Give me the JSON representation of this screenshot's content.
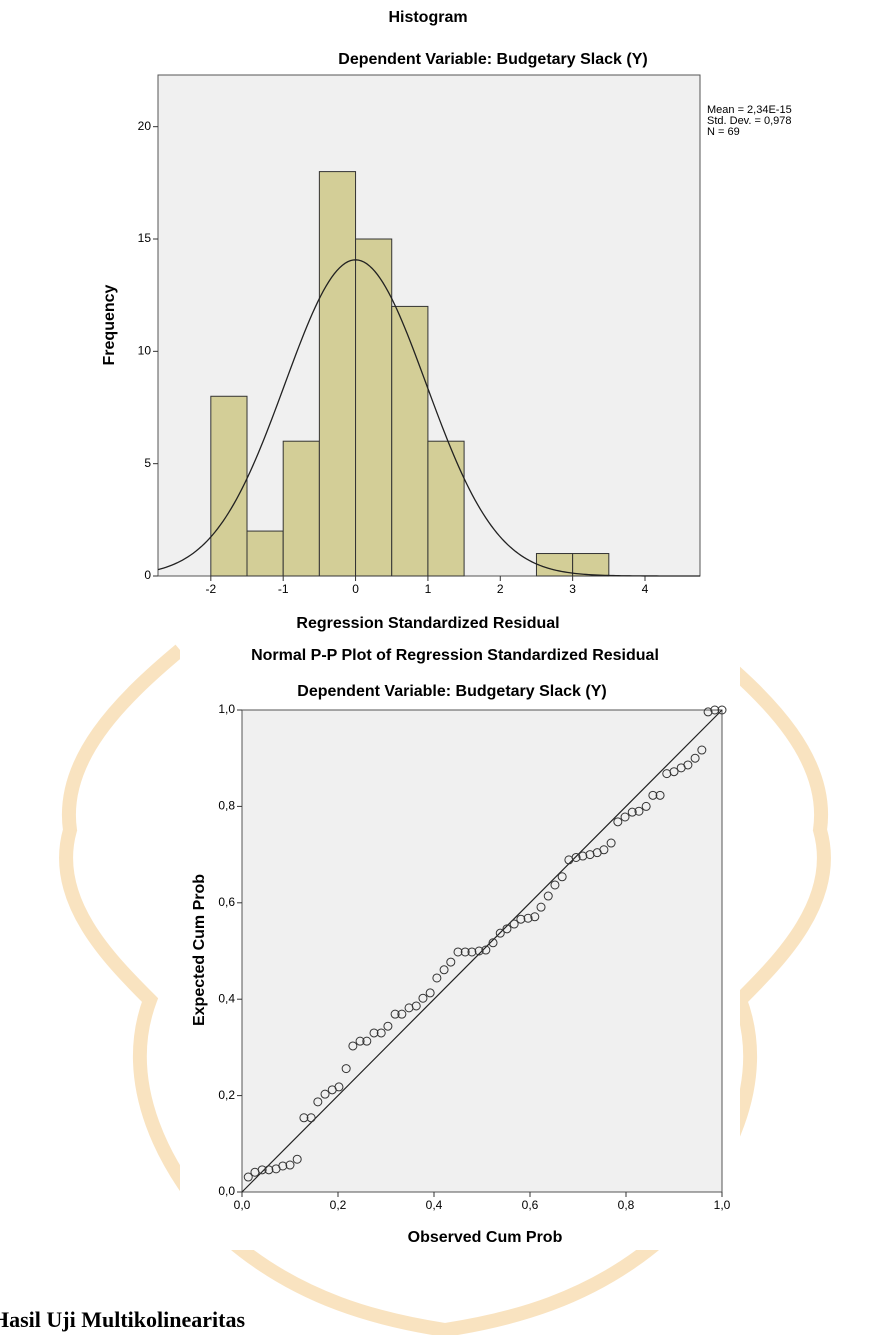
{
  "chart_data": [
    {
      "type": "histogram",
      "title": "Histogram",
      "subtitle": "Dependent Variable: Budgetary Slack  (Y)",
      "x_label": "Regression Standardized Residual",
      "y_label": "Frequency",
      "bins": [
        -2,
        -1.5,
        -1,
        -0.5,
        0,
        0.5,
        1,
        1.5,
        2,
        2.5,
        3,
        3.5
      ],
      "values": [
        8,
        2,
        6,
        18,
        15,
        12,
        6,
        0,
        0,
        1,
        1
      ],
      "color": "#d3ce97",
      "mean": {
        "value": 2.34e-15,
        "label": "Mean = 2,34E-15"
      },
      "std": {
        "value": 0.978,
        "label": "Std. Dev. = 0,978"
      },
      "n": {
        "value": 69,
        "label": "N = 69"
      },
      "xlim": [
        -2.73,
        4.76
      ],
      "ylim": [
        0,
        22.3
      ],
      "xticks": [
        -2,
        -1,
        0,
        1,
        2,
        3,
        4
      ],
      "yticks": [
        0,
        5,
        10,
        15,
        20
      ]
    },
    {
      "type": "scatter",
      "title": "Normal P-P Plot of Regression Standardized Residual",
      "subtitle": "Dependent Variable: Budgetary Slack  (Y)",
      "x_label": "Observed Cum Prob",
      "y_label": "Expected Cum Prob",
      "x": [
        0.013,
        0.027,
        0.042,
        0.056,
        0.071,
        0.085,
        0.1,
        0.115,
        0.129,
        0.144,
        0.158,
        0.173,
        0.188,
        0.202,
        0.217,
        0.231,
        0.246,
        0.26,
        0.275,
        0.29,
        0.304,
        0.319,
        0.333,
        0.348,
        0.363,
        0.377,
        0.392,
        0.406,
        0.421,
        0.435,
        0.45,
        0.465,
        0.479,
        0.494,
        0.508,
        0.523,
        0.538,
        0.552,
        0.567,
        0.581,
        0.596,
        0.61,
        0.623,
        0.638,
        0.652,
        0.667,
        0.681,
        0.696,
        0.71,
        0.725,
        0.74,
        0.754,
        0.769,
        0.783,
        0.798,
        0.813,
        0.827,
        0.842,
        0.856,
        0.871,
        0.885,
        0.9,
        0.915,
        0.929,
        0.944,
        0.958,
        0.971,
        0.985,
        1.0
      ],
      "values": [
        0.031,
        0.041,
        0.046,
        0.046,
        0.048,
        0.054,
        0.056,
        0.068,
        0.154,
        0.154,
        0.187,
        0.203,
        0.212,
        0.218,
        0.256,
        0.303,
        0.313,
        0.313,
        0.33,
        0.33,
        0.344,
        0.369,
        0.369,
        0.382,
        0.386,
        0.402,
        0.413,
        0.444,
        0.461,
        0.477,
        0.498,
        0.498,
        0.498,
        0.5,
        0.502,
        0.517,
        0.537,
        0.546,
        0.556,
        0.566,
        0.568,
        0.571,
        0.591,
        0.614,
        0.637,
        0.654,
        0.689,
        0.694,
        0.697,
        0.7,
        0.704,
        0.71,
        0.724,
        0.768,
        0.778,
        0.788,
        0.79,
        0.8,
        0.823,
        0.823,
        0.868,
        0.872,
        0.88,
        0.886,
        0.9,
        0.917,
        0.996,
        1.0,
        1.0
      ],
      "color": "#333333",
      "xlim": [
        0,
        1
      ],
      "ylim": [
        0,
        1
      ],
      "xticks": [
        {
          "value": 0,
          "label": "0,0"
        },
        {
          "value": 0.2,
          "label": "0,2"
        },
        {
          "value": 0.4,
          "label": "0,4"
        },
        {
          "value": 0.6,
          "label": "0,6"
        },
        {
          "value": 0.8,
          "label": "0,8"
        },
        {
          "value": 1,
          "label": "1,0"
        }
      ],
      "yticks": [
        {
          "value": 0,
          "label": "0,0"
        },
        {
          "value": 0.2,
          "label": "0,2"
        },
        {
          "value": 0.4,
          "label": "0,4"
        },
        {
          "value": 0.6,
          "label": "0,6"
        },
        {
          "value": 0.8,
          "label": "0,8"
        },
        {
          "value": 1,
          "label": "1,0"
        }
      ]
    }
  ],
  "heading": "Hasil Uji Multikolinearitas"
}
